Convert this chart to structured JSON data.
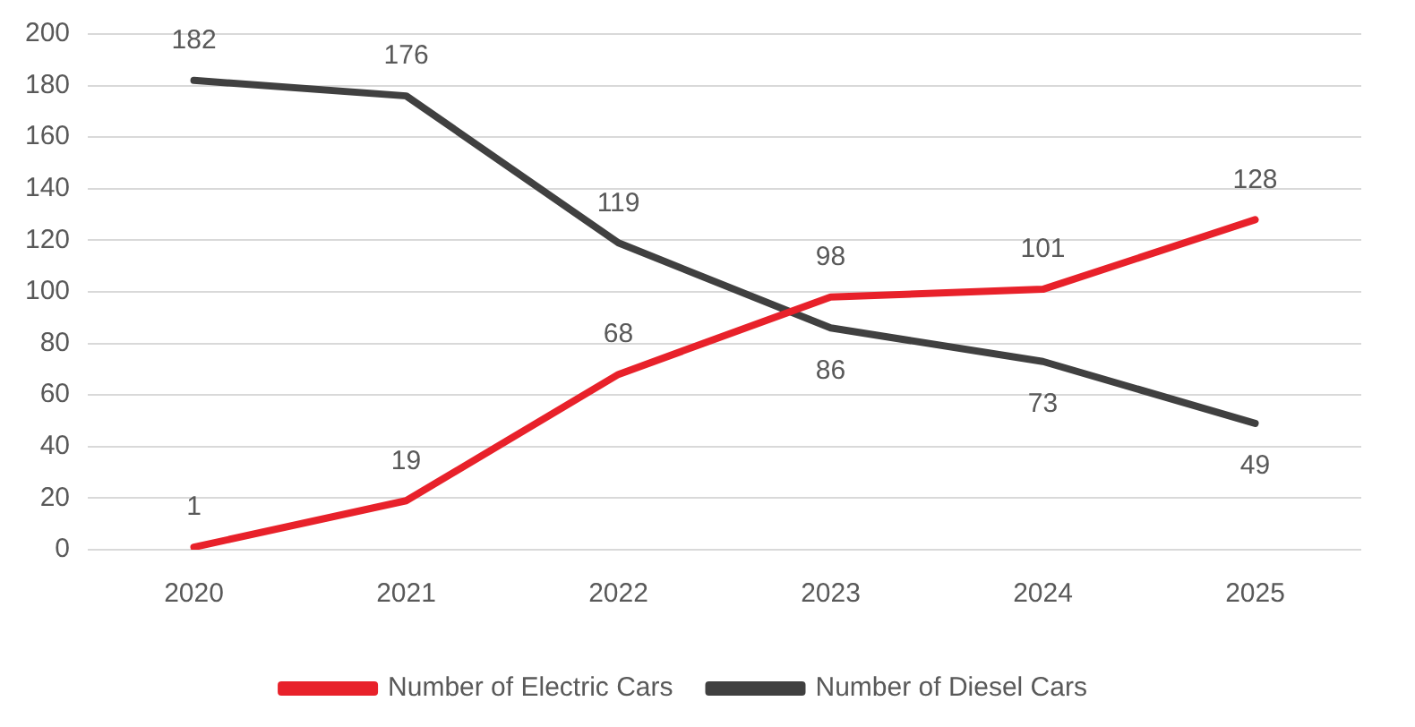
{
  "chart_data": {
    "type": "line",
    "categories": [
      "2020",
      "2021",
      "2022",
      "2023",
      "2024",
      "2025"
    ],
    "series": [
      {
        "name": "Number of Electric Cars",
        "color": "#e8212a",
        "values": [
          1,
          19,
          68,
          98,
          101,
          128
        ]
      },
      {
        "name": "Number of Diesel Cars",
        "color": "#404040",
        "values": [
          182,
          176,
          119,
          86,
          73,
          49
        ]
      }
    ],
    "ylim": [
      0,
      200
    ],
    "yticks": [
      0,
      20,
      40,
      60,
      80,
      100,
      120,
      140,
      160,
      180,
      200
    ],
    "grid": "y",
    "legend": "bottom",
    "data_labels": true,
    "marker": "none",
    "line_style": "solid"
  }
}
